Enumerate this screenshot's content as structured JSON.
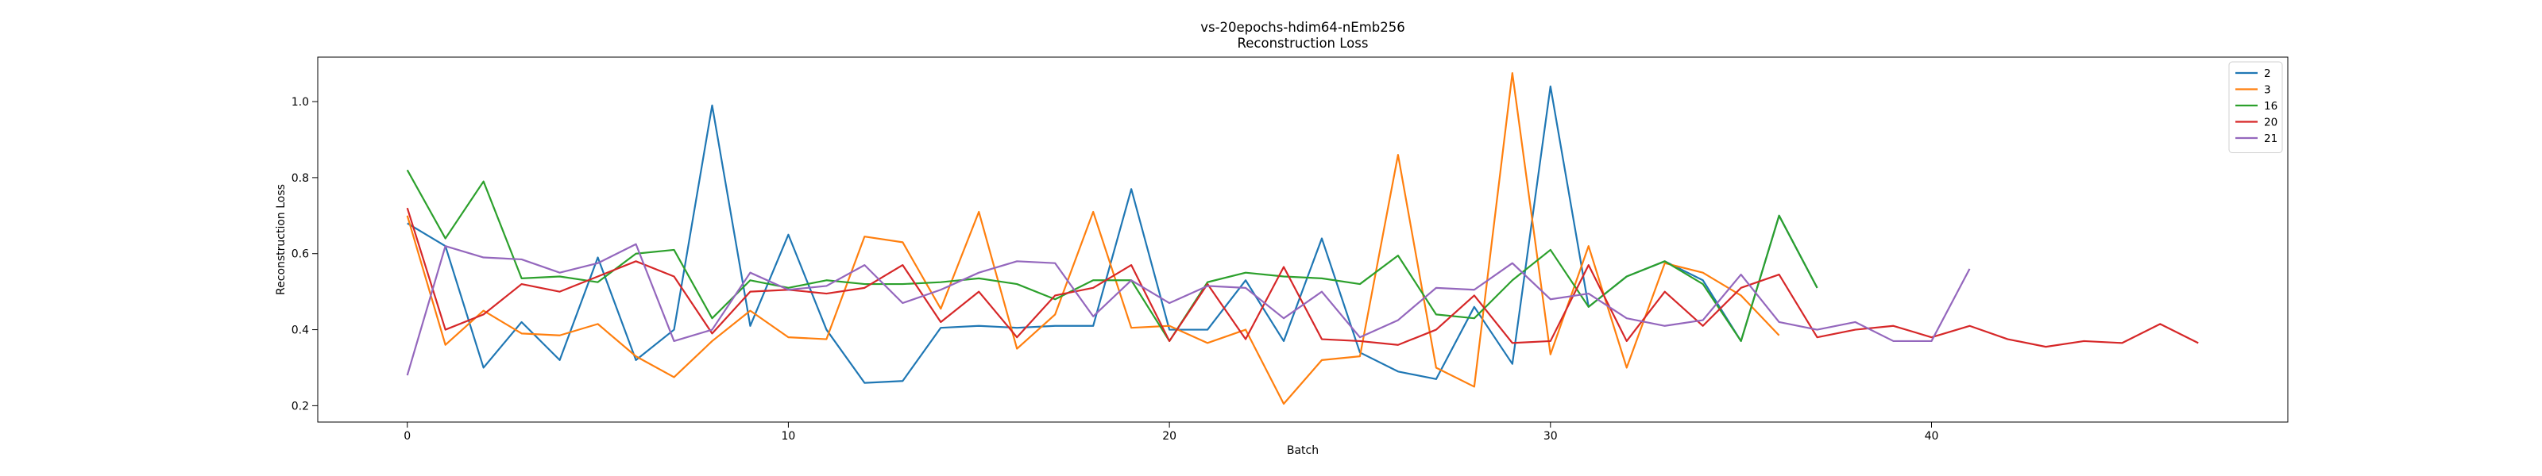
{
  "chart_data": {
    "type": "line",
    "title": "vs-20epochs-hdim64-nEmb256",
    "subtitle": "Reconstruction Loss",
    "xlabel": "Batch",
    "ylabel": "Reconstruction Loss",
    "xlim": [
      -2.35,
      49.35
    ],
    "ylim": [
      0.157,
      1.117
    ],
    "xticks": [
      0,
      10,
      20,
      30,
      40
    ],
    "yticks": [
      0.2,
      0.4,
      0.6,
      0.8,
      1.0
    ],
    "ytick_labels": [
      "0.2",
      "0.4",
      "0.6",
      "0.8",
      "1.0"
    ],
    "grid": false,
    "legend_position": "top-right",
    "series": [
      {
        "name": "2",
        "color": "#1f77b4",
        "values": [
          0.68,
          0.62,
          0.3,
          0.42,
          0.32,
          0.59,
          0.32,
          0.4,
          0.99,
          0.41,
          0.65,
          0.4,
          0.26,
          0.265,
          0.405,
          0.41,
          0.405,
          0.41,
          0.41,
          0.77,
          0.4,
          0.4,
          0.53,
          0.37,
          0.64,
          0.34,
          0.29,
          0.27,
          0.46,
          0.31,
          1.04,
          0.46,
          0.54,
          0.58,
          0.53,
          0.37,
          0.7,
          0.51
        ]
      },
      {
        "name": "3",
        "color": "#ff7f0e",
        "values": [
          0.7,
          0.36,
          0.45,
          0.39,
          0.385,
          0.415,
          0.33,
          0.275,
          0.37,
          0.45,
          0.38,
          0.375,
          0.645,
          0.63,
          0.455,
          0.71,
          0.35,
          0.44,
          0.71,
          0.405,
          0.41,
          0.365,
          0.4,
          0.205,
          0.32,
          0.33,
          0.86,
          0.3,
          0.25,
          1.075,
          0.335,
          0.62,
          0.3,
          0.575,
          0.55,
          0.49,
          0.385
        ]
      },
      {
        "name": "16",
        "color": "#2ca02c",
        "values": [
          0.82,
          0.64,
          0.79,
          0.535,
          0.54,
          0.525,
          0.6,
          0.61,
          0.43,
          0.53,
          0.51,
          0.53,
          0.52,
          0.52,
          0.525,
          0.535,
          0.52,
          0.48,
          0.53,
          0.53,
          0.37,
          0.525,
          0.55,
          0.54,
          0.535,
          0.52,
          0.595,
          0.44,
          0.43,
          0.53,
          0.61,
          0.46,
          0.54,
          0.58,
          0.52,
          0.37,
          0.7,
          0.51
        ]
      },
      {
        "name": "20",
        "color": "#d62728",
        "values": [
          0.72,
          0.4,
          0.44,
          0.52,
          0.5,
          0.54,
          0.58,
          0.54,
          0.39,
          0.5,
          0.505,
          0.495,
          0.51,
          0.57,
          0.42,
          0.5,
          0.38,
          0.49,
          0.51,
          0.57,
          0.37,
          0.52,
          0.375,
          0.565,
          0.375,
          0.37,
          0.36,
          0.4,
          0.49,
          0.365,
          0.37,
          0.57,
          0.37,
          0.5,
          0.41,
          0.51,
          0.545,
          0.38,
          0.4,
          0.41,
          0.38,
          0.41,
          0.375,
          0.355,
          0.37,
          0.365,
          0.415,
          0.365
        ]
      },
      {
        "name": "21",
        "color": "#9467bd",
        "values": [
          0.28,
          0.62,
          0.59,
          0.585,
          0.55,
          0.575,
          0.625,
          0.37,
          0.4,
          0.55,
          0.505,
          0.515,
          0.57,
          0.47,
          0.505,
          0.55,
          0.58,
          0.575,
          0.435,
          0.53,
          0.47,
          0.515,
          0.51,
          0.43,
          0.5,
          0.38,
          0.425,
          0.51,
          0.505,
          0.575,
          0.48,
          0.495,
          0.43,
          0.41,
          0.425,
          0.545,
          0.42,
          0.4,
          0.42,
          0.37,
          0.37,
          0.56
        ]
      }
    ]
  }
}
